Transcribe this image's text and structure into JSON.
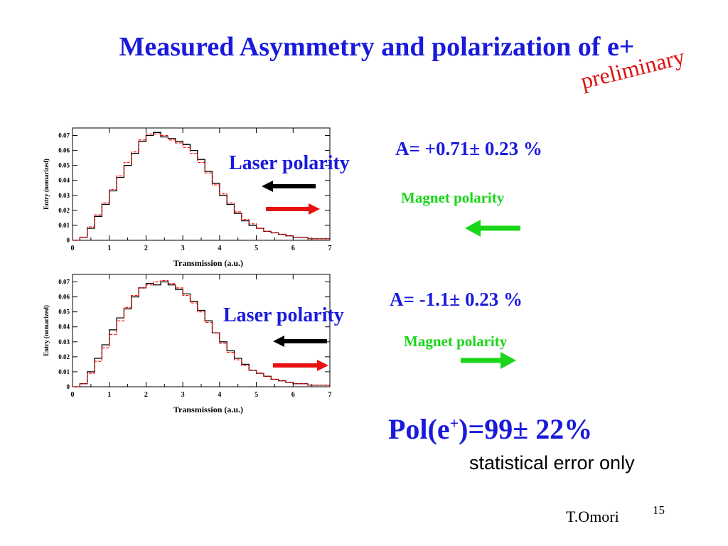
{
  "slide": {
    "title": "Measured Asymmetry and polarization of e+",
    "preliminary": "preliminary",
    "panel1": {
      "laser_label": "Laser polarity",
      "asymmetry": "A= +0.71± 0.23 %",
      "magnet_label": "Magnet polarity",
      "magnet_arrow_direction": "left"
    },
    "panel2": {
      "laser_label": "Laser polarity",
      "asymmetry": "A= -1.1± 0.23 %",
      "magnet_label": "Magnet polarity",
      "magnet_arrow_direction": "right"
    },
    "pol_prefix": "Pol(e",
    "pol_sup": "+",
    "pol_suffix": ")=99± 22%",
    "stat_note": "statistical error only",
    "author": "T.Omori",
    "page_number": "15",
    "colors": {
      "title_blue": "#1a1adc",
      "preliminary_red": "#e01010",
      "magnet_green": "#19d619",
      "laser_black": "#000000",
      "laser_red": "#e81010"
    }
  },
  "chart_data": [
    {
      "type": "line",
      "subtype": "histogram",
      "xlabel": "Transmission (a.u.)",
      "ylabel": "Entry (nomarized)",
      "xlim": [
        0,
        7
      ],
      "ylim": [
        0,
        0.075
      ],
      "xticks": [
        "0",
        "1",
        "2",
        "3",
        "4",
        "5",
        "6",
        "7"
      ],
      "yticks": [
        "0",
        "0.01",
        "0.02",
        "0.03",
        "0.04",
        "0.05",
        "0.06",
        "0.07"
      ],
      "bin_edges": [
        0.0,
        0.2,
        0.4,
        0.6,
        0.8,
        1.0,
        1.2,
        1.4,
        1.6,
        1.8,
        2.0,
        2.2,
        2.4,
        2.6,
        2.8,
        3.0,
        3.2,
        3.4,
        3.6,
        3.8,
        4.0,
        4.2,
        4.4,
        4.6,
        4.8,
        5.0,
        5.2,
        5.4,
        5.6,
        5.8,
        6.0,
        6.2,
        6.4,
        6.6,
        6.8,
        7.0
      ],
      "series": [
        {
          "color": "#000000",
          "style": "solid",
          "values": [
            0.0,
            0.002,
            0.008,
            0.016,
            0.024,
            0.033,
            0.042,
            0.05,
            0.058,
            0.066,
            0.07,
            0.072,
            0.069,
            0.068,
            0.066,
            0.064,
            0.06,
            0.054,
            0.046,
            0.038,
            0.03,
            0.024,
            0.018,
            0.013,
            0.01,
            0.008,
            0.006,
            0.005,
            0.004,
            0.003,
            0.002,
            0.002,
            0.001,
            0.001,
            0.001
          ]
        },
        {
          "color": "#ff0000",
          "style": "dashed",
          "values": [
            0.0,
            0.002,
            0.009,
            0.017,
            0.025,
            0.034,
            0.043,
            0.052,
            0.059,
            0.067,
            0.071,
            0.071,
            0.07,
            0.067,
            0.065,
            0.062,
            0.058,
            0.052,
            0.045,
            0.037,
            0.031,
            0.025,
            0.019,
            0.014,
            0.011,
            0.008,
            0.006,
            0.005,
            0.004,
            0.003,
            0.002,
            0.002,
            0.001,
            0.001,
            0.001
          ]
        }
      ]
    },
    {
      "type": "line",
      "subtype": "histogram",
      "xlabel": "Transmission (a.u.)",
      "ylabel": "Entry (nomarized)",
      "xlim": [
        0,
        7
      ],
      "ylim": [
        0,
        0.075
      ],
      "xticks": [
        "0",
        "1",
        "2",
        "3",
        "4",
        "5",
        "6",
        "7"
      ],
      "yticks": [
        "0",
        "0.01",
        "0.02",
        "0.03",
        "0.04",
        "0.05",
        "0.06",
        "0.07"
      ],
      "bin_edges": [
        0.0,
        0.2,
        0.4,
        0.6,
        0.8,
        1.0,
        1.2,
        1.4,
        1.6,
        1.8,
        2.0,
        2.2,
        2.4,
        2.6,
        2.8,
        3.0,
        3.2,
        3.4,
        3.6,
        3.8,
        4.0,
        4.2,
        4.4,
        4.6,
        4.8,
        5.0,
        5.2,
        5.4,
        5.6,
        5.8,
        6.0,
        6.2,
        6.4,
        6.6,
        6.8,
        7.0
      ],
      "series": [
        {
          "color": "#000000",
          "style": "solid",
          "values": [
            0.0,
            0.002,
            0.01,
            0.019,
            0.028,
            0.038,
            0.046,
            0.052,
            0.06,
            0.066,
            0.069,
            0.068,
            0.07,
            0.068,
            0.065,
            0.062,
            0.057,
            0.051,
            0.044,
            0.036,
            0.03,
            0.024,
            0.019,
            0.015,
            0.011,
            0.009,
            0.007,
            0.005,
            0.004,
            0.003,
            0.002,
            0.002,
            0.001,
            0.001,
            0.001
          ]
        },
        {
          "color": "#ff0000",
          "style": "dashed",
          "values": [
            0.0,
            0.002,
            0.009,
            0.017,
            0.026,
            0.035,
            0.044,
            0.053,
            0.061,
            0.066,
            0.068,
            0.07,
            0.071,
            0.069,
            0.066,
            0.061,
            0.056,
            0.05,
            0.043,
            0.036,
            0.029,
            0.023,
            0.018,
            0.014,
            0.011,
            0.009,
            0.007,
            0.005,
            0.004,
            0.003,
            0.002,
            0.002,
            0.001,
            0.001,
            0.001
          ]
        }
      ]
    }
  ]
}
